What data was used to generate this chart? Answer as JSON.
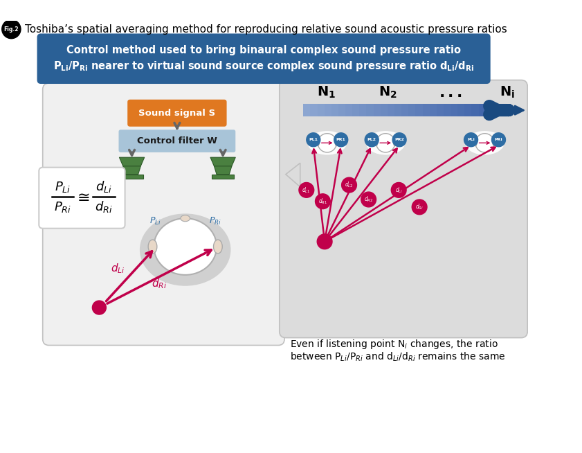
{
  "fig_label": "Fig.2",
  "title": "Toshiba’s spatial averaging method for reproducing relative sound acoustic pressure ratios",
  "banner_text_line1": "Control method used to bring binaural complex sound pressure ratio",
  "banner_text_line2": "P$_{Li}$/P$_{Ri}$ nearer to virtual sound source complex sound pressure ratio d$_{Li}$/d$_{Ri}$",
  "banner_bg": "#2a6096",
  "banner_text_color": "#ffffff",
  "sound_signal_bg": "#e07820",
  "sound_signal_text": "Sound signal S",
  "filter_bg": "#a8c4d8",
  "filter_text": "Control filter W",
  "left_panel_bg": "#f0f0f0",
  "right_panel_bg": "#dcdcdc",
  "crimson": "#c0004a",
  "blue_circle": "#2e6da4",
  "arrow_blue_dark": "#1a4a80",
  "arrow_blue_light": "#8ab0d0",
  "speaker_green": "#4a8040",
  "speaker_dark": "#2a5020",
  "bottom_text_line1": "Even if listening point N$_i$ changes, the ratio",
  "bottom_text_line2": "between P$_{Li}$/P$_{Ri}$ and d$_{Li}$/d$_{Ri}$ remains the same",
  "white": "#ffffff",
  "gray_head_bg": "#d0d0d0"
}
